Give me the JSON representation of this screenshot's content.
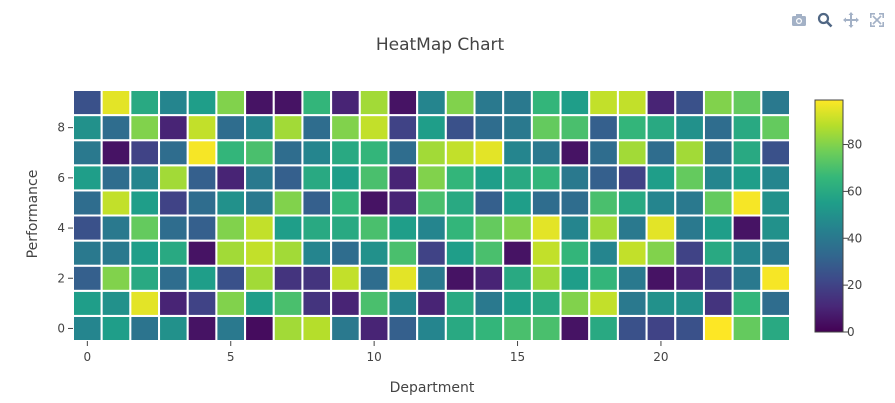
{
  "toolbar": {
    "icons": [
      "camera-icon",
      "zoom-icon",
      "pan-icon",
      "autoscale-icon"
    ]
  },
  "chart_data": {
    "type": "heatmap",
    "title": "HeatMap Chart",
    "xlabel": "Department",
    "ylabel": "Performance",
    "x_ticks": [
      0,
      5,
      10,
      15,
      20
    ],
    "y_ticks": [
      0,
      2,
      4,
      6,
      8
    ],
    "xlim": [
      -0.5,
      24.5
    ],
    "ylim": [
      -0.5,
      9.5
    ],
    "colorscale": "Viridis",
    "colorbar": {
      "ticks": [
        0,
        20,
        40,
        60,
        80
      ],
      "range": [
        0,
        99
      ]
    },
    "grid": false,
    "z": [
      [
        45,
        55,
        38,
        50,
        5,
        40,
        3,
        85,
        88,
        40,
        10,
        30,
        45,
        60,
        65,
        70,
        70,
        5,
        60,
        25,
        20,
        25,
        99,
        75,
        60
      ],
      [
        55,
        50,
        95,
        10,
        20,
        80,
        55,
        70,
        15,
        10,
        70,
        45,
        10,
        60,
        40,
        55,
        60,
        80,
        90,
        40,
        50,
        50,
        15,
        65,
        35
      ],
      [
        30,
        80,
        60,
        35,
        55,
        25,
        85,
        15,
        15,
        90,
        35,
        95,
        40,
        5,
        10,
        60,
        85,
        55,
        65,
        40,
        5,
        10,
        20,
        40,
        98
      ],
      [
        40,
        40,
        55,
        60,
        5,
        85,
        90,
        85,
        45,
        35,
        50,
        70,
        20,
        55,
        70,
        5,
        90,
        65,
        45,
        90,
        80,
        20,
        60,
        45,
        40
      ],
      [
        25,
        40,
        75,
        35,
        30,
        80,
        90,
        55,
        60,
        60,
        70,
        55,
        45,
        65,
        75,
        80,
        95,
        45,
        85,
        40,
        95,
        40,
        55,
        5,
        50
      ],
      [
        35,
        90,
        55,
        20,
        35,
        50,
        40,
        80,
        30,
        65,
        5,
        10,
        70,
        60,
        30,
        55,
        35,
        35,
        70,
        60,
        45,
        40,
        75,
        98,
        50
      ],
      [
        55,
        35,
        45,
        85,
        30,
        10,
        40,
        30,
        60,
        55,
        70,
        10,
        80,
        65,
        55,
        60,
        65,
        40,
        30,
        20,
        55,
        75,
        45,
        55,
        45
      ],
      [
        40,
        5,
        20,
        35,
        98,
        65,
        70,
        35,
        45,
        60,
        65,
        35,
        85,
        90,
        95,
        45,
        40,
        5,
        35,
        85,
        35,
        85,
        35,
        60,
        25
      ],
      [
        50,
        35,
        80,
        10,
        90,
        35,
        45,
        85,
        35,
        80,
        90,
        20,
        55,
        25,
        35,
        40,
        75,
        70,
        30,
        65,
        60,
        50,
        35,
        60,
        75
      ],
      [
        25,
        95,
        60,
        45,
        55,
        80,
        5,
        5,
        65,
        10,
        85,
        5,
        45,
        80,
        40,
        40,
        65,
        55,
        90,
        90,
        10,
        25,
        80,
        75,
        40
      ]
    ]
  }
}
